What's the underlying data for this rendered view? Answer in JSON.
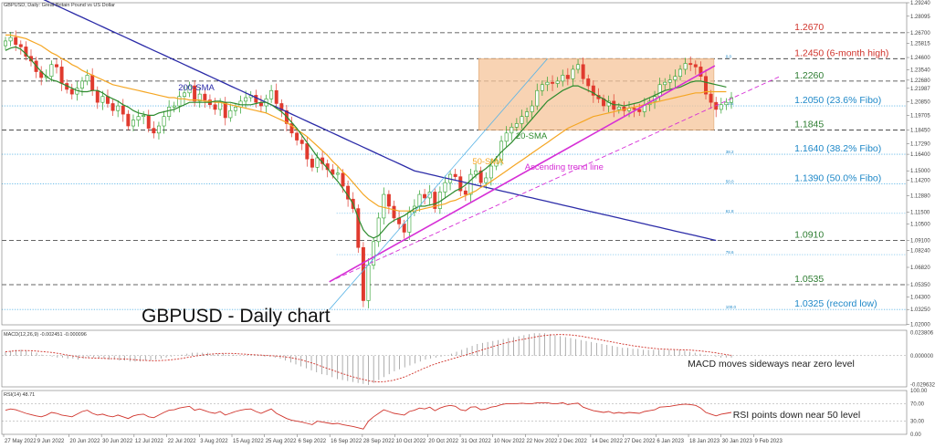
{
  "header": {
    "title": "GBPUSD, Daily: Great Britain Pound vs US Dollar",
    "chart_title": "GBPUSD - Daily chart"
  },
  "colors": {
    "bull": "#2ca02c",
    "bear": "#e03a2e",
    "sma20": "#2e8b2e",
    "sma50": "#f5a623",
    "sma200": "#2c2ca8",
    "trend": "#d62fd6",
    "fibo": "#5ab4e6",
    "range_fill": "#f6c49a",
    "macd": "#d0342c",
    "rsi": "#d0342c",
    "resistance_text": "#d0342c",
    "support_text": "#2e7d32",
    "fibo_text": "#1e88c8"
  },
  "chart_data": [
    {
      "type": "candlestick",
      "title": "GBPUSD - Daily chart",
      "x_labels": [
        "27 May 2022",
        "9 Jun 2022",
        "20 Jun 2022",
        "30 Jun 2022",
        "12 Jul 2022",
        "22 Jul 2022",
        "3 Aug 2022",
        "15 Aug 2022",
        "25 Aug 2022",
        "6 Sep 2022",
        "16 Sep 2022",
        "28 Sep 2022",
        "10 Oct 2022",
        "20 Oct 2022",
        "31 Oct 2022",
        "10 Nov 2022",
        "22 Nov 2022",
        "2 Dec 2022",
        "14 Dec 2022",
        "27 Dec 2022",
        "6 Jan 2023",
        "18 Jan 2023",
        "30 Jan 2023",
        "9 Feb 2023"
      ],
      "ylim": [
        1.0195,
        1.2924
      ],
      "y_ticks": [
        "1.29240",
        "1.28095",
        "1.26700",
        "1.25815",
        "1.24600",
        "1.23540",
        "1.22680",
        "1.21987",
        "1.20850",
        "1.19705",
        "1.18450",
        "1.17290",
        "1.16400",
        "1.15000",
        "1.14200",
        "1.12880",
        "1.11500",
        "1.10500",
        "1.09100",
        "1.08240",
        "1.06820",
        "1.05350",
        "1.04300",
        "1.03250",
        "1.02000"
      ],
      "levels": [
        {
          "value": 1.267,
          "label": "1.2670",
          "style": "dashed",
          "kind": "resistance"
        },
        {
          "value": 1.245,
          "label": "1.2450 (6-month high)",
          "style": "dashed",
          "kind": "resistance"
        },
        {
          "value": 1.226,
          "label": "1.2260",
          "style": "dashed",
          "kind": "support"
        },
        {
          "value": 1.205,
          "label": "1.2050 (23.6% Fibo)",
          "style": "dotted",
          "kind": "fibo"
        },
        {
          "value": 1.1845,
          "label": "1.1845",
          "style": "dashed",
          "kind": "support"
        },
        {
          "value": 1.164,
          "label": "1.1640 (38.2% Fibo)",
          "style": "dotted",
          "kind": "fibo"
        },
        {
          "value": 1.139,
          "label": "1.1390 (50.0% Fibo)",
          "style": "dotted",
          "kind": "fibo"
        },
        {
          "value": 1.091,
          "label": "1.0910",
          "style": "dashed",
          "kind": "support"
        },
        {
          "value": 1.0535,
          "label": "1.0535",
          "style": "dashed",
          "kind": "support"
        },
        {
          "value": 1.0325,
          "label": "1.0325 (record low)",
          "style": "dotted",
          "kind": "fibo"
        }
      ],
      "fibo_extra_levels": [
        1.114,
        1.079
      ],
      "fibo_small_labels": [
        "0.0",
        "23.6",
        "38.2",
        "50.0",
        "61.8",
        "78.6",
        "100.0"
      ],
      "range_box": {
        "from": "22 Nov 2022",
        "to": "9 Feb 2023",
        "top": 1.245,
        "bottom": 1.1845
      },
      "annotations": {
        "sma200": "200-SMA",
        "sma20": "20-SMA",
        "sma50": "50-SMA",
        "trend": "Ascending trend line"
      },
      "trend_line": {
        "from": [
          0.362,
          1.056
        ],
        "to": [
          0.788,
          1.239
        ]
      },
      "trend_line_dashed": {
        "from": [
          0.362,
          1.056
        ],
        "to": [
          0.86,
          1.23
        ]
      },
      "fibo_diag": {
        "from": [
          0.362,
          1.0325
        ],
        "to": [
          0.603,
          1.245
        ]
      },
      "close": [
        1.26,
        1.263,
        1.257,
        1.255,
        1.247,
        1.243,
        1.234,
        1.229,
        1.23,
        1.24,
        1.238,
        1.224,
        1.219,
        1.215,
        1.22,
        1.226,
        1.231,
        1.218,
        1.208,
        1.213,
        1.207,
        1.201,
        1.205,
        1.198,
        1.188,
        1.193,
        1.196,
        1.197,
        1.186,
        1.182,
        1.188,
        1.196,
        1.204,
        1.205,
        1.213,
        1.216,
        1.222,
        1.209,
        1.215,
        1.21,
        1.206,
        1.202,
        1.208,
        1.195,
        1.201,
        1.204,
        1.209,
        1.212,
        1.214,
        1.208,
        1.205,
        1.211,
        1.218,
        1.207,
        1.201,
        1.19,
        1.182,
        1.176,
        1.173,
        1.16,
        1.153,
        1.161,
        1.156,
        1.151,
        1.147,
        1.148,
        1.137,
        1.126,
        1.118,
        1.085,
        1.04,
        1.07,
        1.09,
        1.11,
        1.13,
        1.12,
        1.11,
        1.105,
        1.098,
        1.115,
        1.12,
        1.13,
        1.127,
        1.132,
        1.118,
        1.132,
        1.14,
        1.147,
        1.145,
        1.133,
        1.13,
        1.147,
        1.15,
        1.14,
        1.144,
        1.154,
        1.159,
        1.175,
        1.182,
        1.187,
        1.19,
        1.196,
        1.2,
        1.205,
        1.218,
        1.223,
        1.225,
        1.224,
        1.226,
        1.231,
        1.228,
        1.236,
        1.24,
        1.228,
        1.222,
        1.214,
        1.211,
        1.205,
        1.209,
        1.202,
        1.204,
        1.201,
        1.203,
        1.202,
        1.2,
        1.206,
        1.209,
        1.213,
        1.223,
        1.225,
        1.227,
        1.23,
        1.236,
        1.241,
        1.24,
        1.238,
        1.23,
        1.215,
        1.208,
        1.202,
        1.206,
        1.208,
        1.212
      ],
      "sma20": [
        1.252,
        1.254,
        1.255,
        1.253,
        1.249,
        1.244,
        1.239,
        1.234,
        1.23,
        1.227,
        1.226,
        1.224,
        1.222,
        1.22,
        1.218,
        1.217,
        1.217,
        1.218,
        1.218,
        1.216,
        1.213,
        1.211,
        1.209,
        1.206,
        1.204,
        1.201,
        1.199,
        1.198,
        1.197,
        1.197,
        1.199,
        1.2,
        1.201,
        1.202,
        1.204,
        1.206,
        1.208,
        1.208,
        1.208,
        1.208,
        1.208,
        1.209,
        1.209,
        1.208,
        1.208,
        1.207,
        1.206,
        1.206,
        1.206,
        1.207,
        1.208,
        1.208,
        1.206,
        1.203,
        1.2,
        1.196,
        1.191,
        1.186,
        1.18,
        1.174,
        1.168,
        1.162,
        1.157,
        1.152,
        1.146,
        1.141,
        1.135,
        1.129,
        1.122,
        1.11,
        1.1,
        1.095,
        1.093,
        1.095,
        1.1,
        1.105,
        1.108,
        1.11,
        1.112,
        1.115,
        1.118,
        1.12,
        1.12,
        1.121,
        1.122,
        1.124,
        1.127,
        1.13,
        1.133,
        1.135,
        1.138,
        1.142,
        1.146,
        1.149,
        1.152,
        1.156,
        1.161,
        1.166,
        1.17,
        1.174,
        1.179,
        1.184,
        1.189,
        1.194,
        1.199,
        1.204,
        1.209,
        1.212,
        1.215,
        1.218,
        1.22,
        1.222,
        1.222,
        1.22,
        1.218,
        1.216,
        1.213,
        1.211,
        1.208,
        1.206,
        1.206,
        1.205,
        1.206,
        1.207,
        1.208,
        1.21,
        1.212,
        1.214,
        1.216,
        1.218,
        1.219,
        1.22,
        1.221,
        1.223,
        1.225,
        1.226,
        1.226,
        1.225,
        1.224,
        1.223,
        1.222,
        1.221
      ],
      "sma50": [
        1.265,
        1.265,
        1.264,
        1.263,
        1.262,
        1.26,
        1.258,
        1.256,
        1.253,
        1.25,
        1.248,
        1.245,
        1.243,
        1.24,
        1.238,
        1.235,
        1.233,
        1.231,
        1.229,
        1.227,
        1.225,
        1.223,
        1.222,
        1.221,
        1.22,
        1.219,
        1.218,
        1.217,
        1.216,
        1.215,
        1.214,
        1.213,
        1.212,
        1.212,
        1.211,
        1.211,
        1.21,
        1.21,
        1.21,
        1.209,
        1.209,
        1.208,
        1.208,
        1.207,
        1.206,
        1.205,
        1.204,
        1.203,
        1.202,
        1.201,
        1.2,
        1.199,
        1.197,
        1.195,
        1.193,
        1.191,
        1.188,
        1.185,
        1.182,
        1.179,
        1.175,
        1.171,
        1.167,
        1.163,
        1.158,
        1.154,
        1.149,
        1.145,
        1.14,
        1.135,
        1.13,
        1.126,
        1.123,
        1.12,
        1.119,
        1.118,
        1.117,
        1.116,
        1.116,
        1.116,
        1.116,
        1.117,
        1.118,
        1.119,
        1.12,
        1.121,
        1.122,
        1.124,
        1.125,
        1.127,
        1.129,
        1.131,
        1.133,
        1.136,
        1.138,
        1.141,
        1.144,
        1.147,
        1.15,
        1.153,
        1.156,
        1.159,
        1.162,
        1.165,
        1.168,
        1.171,
        1.174,
        1.177,
        1.18,
        1.183,
        1.186,
        1.188,
        1.19,
        1.192,
        1.194,
        1.196,
        1.197,
        1.198,
        1.199,
        1.2,
        1.201,
        1.202,
        1.203,
        1.204,
        1.205,
        1.206,
        1.207,
        1.208,
        1.209,
        1.21,
        1.211,
        1.212,
        1.213,
        1.214,
        1.215,
        1.216,
        1.216,
        1.217,
        1.217,
        1.217,
        1.217,
        1.217
      ],
      "sma200": [
        1.31,
        1.308,
        1.306,
        1.304,
        1.302,
        1.3,
        1.298,
        1.296,
        1.294,
        1.292,
        1.29,
        1.288,
        1.286,
        1.284,
        1.282,
        1.28,
        1.278,
        1.276,
        1.274,
        1.272,
        1.27,
        1.268,
        1.266,
        1.264,
        1.262,
        1.26,
        1.258,
        1.256,
        1.254,
        1.252,
        1.25,
        1.248,
        1.246,
        1.244,
        1.242,
        1.24,
        1.238,
        1.236,
        1.234,
        1.232,
        1.23,
        1.228,
        1.226,
        1.224,
        1.222,
        1.22,
        1.218,
        1.216,
        1.214,
        1.212,
        1.21,
        1.208,
        1.206,
        1.204,
        1.202,
        1.2,
        1.198,
        1.196,
        1.194,
        1.192,
        1.19,
        1.188,
        1.186,
        1.184,
        1.182,
        1.18,
        1.178,
        1.176,
        1.174,
        1.172,
        1.17,
        1.168,
        1.166,
        1.164,
        1.162,
        1.16,
        1.158,
        1.156,
        1.154,
        1.152,
        1.15,
        1.149,
        1.148,
        1.147,
        1.146,
        1.145,
        1.144,
        1.143,
        1.142,
        1.141,
        1.14,
        1.139,
        1.138,
        1.137,
        1.136,
        1.135,
        1.134,
        1.133,
        1.132,
        1.131,
        1.13,
        1.129,
        1.128,
        1.127,
        1.126,
        1.125,
        1.124,
        1.123,
        1.122,
        1.121,
        1.12,
        1.119,
        1.118,
        1.117,
        1.116,
        1.115,
        1.114,
        1.113,
        1.112,
        1.111,
        1.11,
        1.109,
        1.108,
        1.107,
        1.106,
        1.105,
        1.104,
        1.103,
        1.102,
        1.101,
        1.1,
        1.099,
        1.098,
        1.097,
        1.096,
        1.095,
        1.094,
        1.093,
        1.092,
        1.091
      ]
    },
    {
      "type": "line",
      "title": "MACD(12,26,9) -0.002451 -0.000096",
      "annotation": "MACD moves sideways near zero level",
      "y_ticks": [
        "0.023806",
        "0.000000",
        "-0.029632"
      ],
      "ylim": [
        -0.032,
        0.026
      ],
      "values": [
        0.004,
        0.005,
        0.006,
        0.006,
        0.005,
        0.004,
        0.003,
        0.001,
        0.0,
        -0.001,
        -0.002,
        -0.002,
        -0.003,
        -0.003,
        -0.004,
        -0.003,
        -0.002,
        -0.002,
        -0.003,
        -0.003,
        -0.004,
        -0.004,
        -0.005,
        -0.005,
        -0.006,
        -0.006,
        -0.006,
        -0.005,
        -0.005,
        -0.004,
        -0.003,
        -0.002,
        -0.001,
        0.0,
        0.001,
        0.002,
        0.003,
        0.003,
        0.003,
        0.003,
        0.002,
        0.002,
        0.002,
        0.001,
        0.001,
        0.0,
        0.0,
        0.0,
        0.0,
        0.0,
        -0.001,
        -0.001,
        -0.002,
        -0.003,
        -0.005,
        -0.007,
        -0.009,
        -0.011,
        -0.013,
        -0.015,
        -0.017,
        -0.019,
        -0.02,
        -0.022,
        -0.024,
        -0.025,
        -0.026,
        -0.027,
        -0.028,
        -0.029,
        -0.03,
        -0.028,
        -0.025,
        -0.022,
        -0.019,
        -0.016,
        -0.014,
        -0.012,
        -0.01,
        -0.008,
        -0.006,
        -0.004,
        -0.003,
        -0.002,
        -0.001,
        0.0,
        0.002,
        0.004,
        0.006,
        0.008,
        0.01,
        0.012,
        0.013,
        0.014,
        0.015,
        0.016,
        0.017,
        0.018,
        0.019,
        0.02,
        0.021,
        0.022,
        0.023,
        0.023,
        0.023,
        0.022,
        0.021,
        0.02,
        0.019,
        0.018,
        0.017,
        0.016,
        0.015,
        0.014,
        0.013,
        0.012,
        0.011,
        0.01,
        0.009,
        0.008,
        0.008,
        0.007,
        0.007,
        0.006,
        0.006,
        0.006,
        0.006,
        0.006,
        0.006,
        0.006,
        0.006,
        0.005,
        0.004,
        0.003,
        0.002,
        0.001,
        0.0,
        -0.001,
        -0.002,
        -0.002,
        -0.002
      ]
    },
    {
      "type": "line",
      "title": "RSI(14) 48.71",
      "annotation": "RSI points down near 50 level",
      "y_ticks": [
        "100.00",
        "70.00",
        "30.00",
        "0.00"
      ],
      "ylim": [
        0,
        100
      ],
      "values": [
        55,
        58,
        56,
        52,
        48,
        45,
        42,
        40,
        44,
        50,
        48,
        44,
        42,
        40,
        46,
        52,
        55,
        48,
        44,
        46,
        42,
        40,
        44,
        40,
        36,
        42,
        45,
        46,
        40,
        38,
        44,
        50,
        55,
        56,
        60,
        62,
        64,
        55,
        58,
        54,
        50,
        48,
        52,
        44,
        48,
        52,
        55,
        57,
        58,
        52,
        48,
        53,
        58,
        48,
        42,
        36,
        32,
        30,
        28,
        25,
        22,
        30,
        28,
        26,
        24,
        25,
        22,
        20,
        18,
        15,
        12,
        30,
        40,
        48,
        56,
        52,
        48,
        46,
        44,
        52,
        55,
        60,
        58,
        62,
        54,
        60,
        64,
        66,
        64,
        56,
        54,
        62,
        63,
        56,
        58,
        62,
        64,
        68,
        70,
        70,
        70,
        71,
        70,
        70,
        72,
        72,
        72,
        70,
        70,
        72,
        68,
        70,
        71,
        62,
        58,
        54,
        52,
        50,
        52,
        48,
        50,
        48,
        50,
        49,
        48,
        52,
        54,
        56,
        62,
        63,
        64,
        66,
        68,
        69,
        68,
        66,
        60,
        50,
        46,
        42,
        46,
        48,
        50
      ]
    }
  ]
}
